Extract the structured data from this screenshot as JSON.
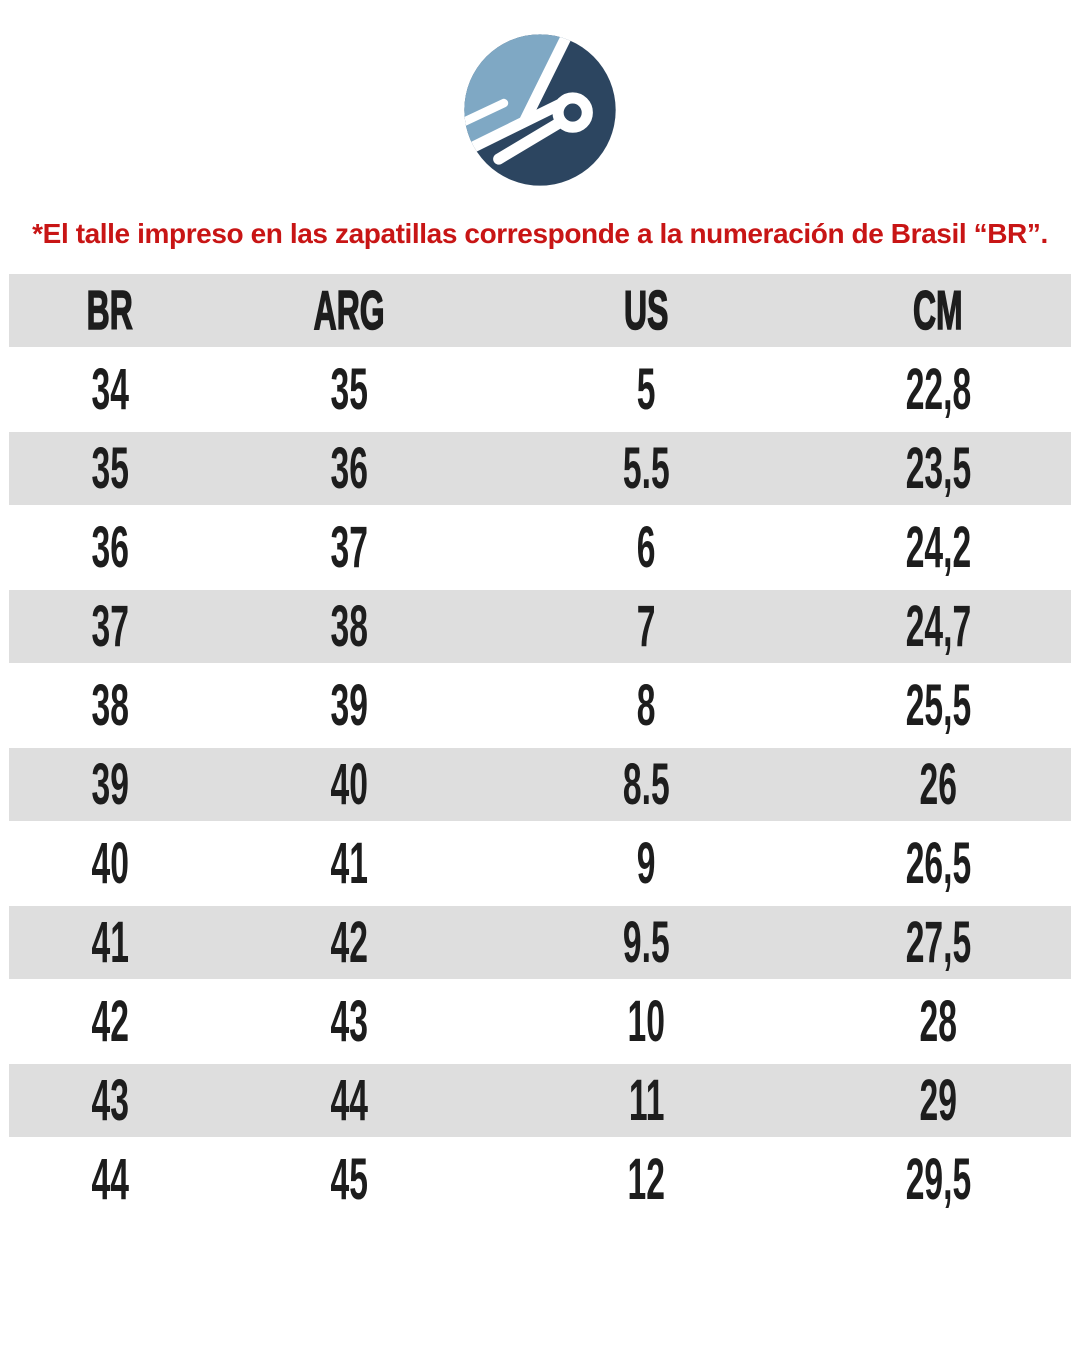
{
  "logo": {
    "icon": "brand-circle-loop-logo"
  },
  "colors": {
    "light_blue": "#7FA8C4",
    "navy": "#2C4560",
    "red": "#C81515",
    "stripe_gray": "#DEDEDE",
    "ink": "#1D1D1D"
  },
  "disclaimer": "*El talle impreso en las zapatillas corresponde a la numeración de Brasil “BR”.",
  "table": {
    "headers": [
      "BR",
      "ARG",
      "US",
      "CM"
    ],
    "rows": [
      [
        "34",
        "35",
        "5",
        "22,8"
      ],
      [
        "35",
        "36",
        "5.5",
        "23,5"
      ],
      [
        "36",
        "37",
        "6",
        "24,2"
      ],
      [
        "37",
        "38",
        "7",
        "24,7"
      ],
      [
        "38",
        "39",
        "8",
        "25,5"
      ],
      [
        "39",
        "40",
        "8.5",
        "26"
      ],
      [
        "40",
        "41",
        "9",
        "26,5"
      ],
      [
        "41",
        "42",
        "9.5",
        "27,5"
      ],
      [
        "42",
        "43",
        "10",
        "28"
      ],
      [
        "43",
        "44",
        "11",
        "29"
      ],
      [
        "44",
        "45",
        "12",
        "29,5"
      ]
    ]
  },
  "chart_data": {
    "type": "table",
    "title": "Shoe size conversion chart",
    "columns": [
      "BR",
      "ARG",
      "US",
      "CM"
    ],
    "rows": [
      [
        "34",
        "35",
        "5",
        "22,8"
      ],
      [
        "35",
        "36",
        "5.5",
        "23,5"
      ],
      [
        "36",
        "37",
        "6",
        "24,2"
      ],
      [
        "37",
        "38",
        "7",
        "24,7"
      ],
      [
        "38",
        "39",
        "8",
        "25,5"
      ],
      [
        "39",
        "40",
        "8.5",
        "26"
      ],
      [
        "40",
        "41",
        "9",
        "26,5"
      ],
      [
        "41",
        "42",
        "9.5",
        "27,5"
      ],
      [
        "42",
        "43",
        "10",
        "28"
      ],
      [
        "43",
        "44",
        "11",
        "29"
      ],
      [
        "44",
        "45",
        "12",
        "29,5"
      ]
    ],
    "layout": "striped rows, alternating white and #DEDEDE, no gridlines, header row gray"
  }
}
